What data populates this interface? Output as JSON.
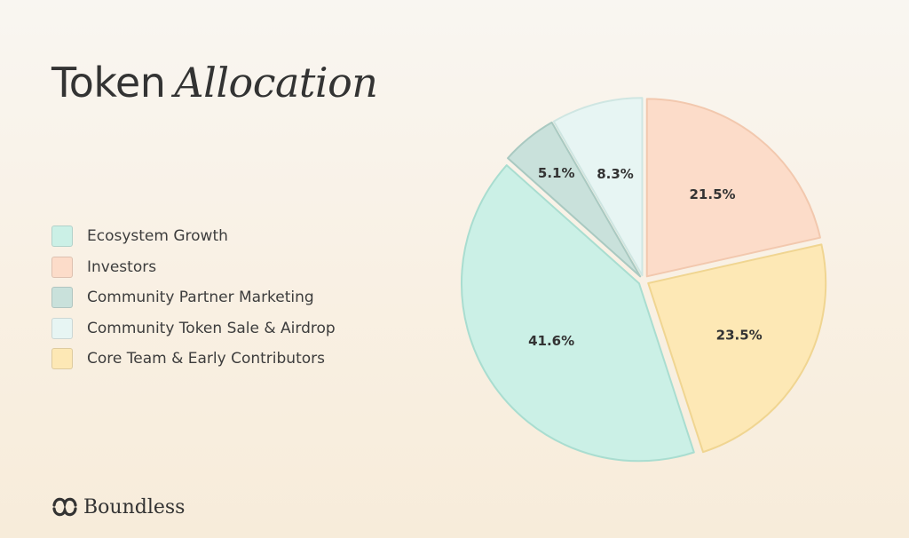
{
  "title": {
    "word1": "Token",
    "word2": "Allocation"
  },
  "brand": {
    "name": "Boundless",
    "icon": "boundless-logo-icon"
  },
  "chart_data": {
    "type": "pie",
    "title": "Token Allocation",
    "legend_position": "left",
    "slices": [
      {
        "label": "Investors",
        "value": 21.5,
        "display": "21.5%",
        "color": "#fcdcc9",
        "stroke": "#f2c8ae"
      },
      {
        "label": "Core Team & Early Contributors",
        "value": 23.5,
        "display": "23.5%",
        "color": "#fde8b5",
        "stroke": "#f0d591"
      },
      {
        "label": "Ecosystem Growth",
        "value": 41.6,
        "display": "41.6%",
        "color": "#cbf0e6",
        "stroke": "#a9ddd0"
      },
      {
        "label": "Community Partner Marketing",
        "value": 5.1,
        "display": "5.1%",
        "color": "#c9e1db",
        "stroke": "#a9c9c1"
      },
      {
        "label": "Community Token Sale & Airdrop",
        "value": 8.3,
        "display": "8.3%",
        "color": "#e7f5f3",
        "stroke": "#cfe6e2"
      }
    ],
    "legend": [
      {
        "label": "Ecosystem Growth",
        "color": "#cbf0e6"
      },
      {
        "label": "Investors",
        "color": "#fcdcc9"
      },
      {
        "label": "Community Partner Marketing",
        "color": "#c9e1db"
      },
      {
        "label": "Community Token Sale & Airdrop",
        "color": "#e7f5f3"
      },
      {
        "label": "Core Team & Early Contributors",
        "color": "#fde8b5"
      }
    ]
  }
}
